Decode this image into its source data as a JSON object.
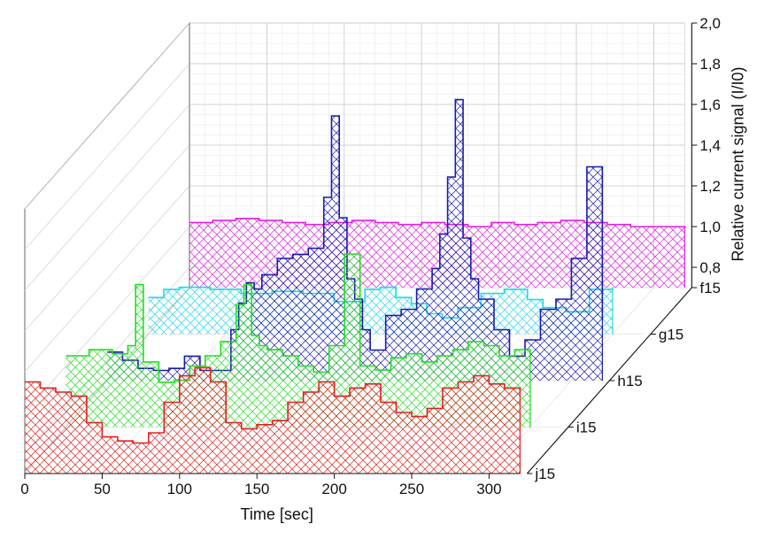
{
  "chart_data": {
    "type": "area",
    "subtype": "3d-waterfall-step",
    "title": "",
    "xlabel": "Time [sec]",
    "ylabel": "Relative current signal (I/I0)",
    "zlabel": "",
    "xlim": [
      0,
      320
    ],
    "ylim": [
      0.7,
      2.0
    ],
    "xticks": [
      "0",
      "50",
      "100",
      "150",
      "200",
      "250",
      "300"
    ],
    "yticks": [
      "0,8",
      "1,0",
      "1,2",
      "1,4",
      "1,6",
      "1,8",
      "2,0"
    ],
    "y_tick_values": [
      0.8,
      1.0,
      1.2,
      1.4,
      1.6,
      1.8,
      2.0
    ],
    "depth_categories": [
      "f15",
      "g15",
      "h15",
      "i15",
      "j15"
    ],
    "grid": true,
    "fill_pattern": "crosshatch",
    "series": [
      {
        "name": "f15",
        "color": "#e020e0",
        "t_start": 0,
        "t_end": 320,
        "x": [
          0,
          15,
          30,
          45,
          60,
          75,
          90,
          105,
          120,
          135,
          150,
          165,
          180,
          195,
          210,
          225,
          240,
          255,
          270,
          285,
          300,
          320
        ],
        "y": [
          1.02,
          1.03,
          1.04,
          1.03,
          1.02,
          1.01,
          1.02,
          1.03,
          1.02,
          1.01,
          1.02,
          1.01,
          1.0,
          1.02,
          1.01,
          1.02,
          1.03,
          1.02,
          1.01,
          1.0,
          1.0,
          0.99
        ]
      },
      {
        "name": "g15",
        "color": "#20d8e8",
        "t_start": 0,
        "t_end": 300,
        "x": [
          0,
          10,
          20,
          40,
          60,
          80,
          100,
          120,
          140,
          150,
          160,
          170,
          180,
          190,
          200,
          215,
          230,
          245,
          255,
          270,
          285,
          300
        ],
        "y": [
          0.88,
          0.92,
          0.93,
          0.92,
          0.9,
          0.91,
          0.9,
          0.86,
          0.92,
          0.93,
          0.88,
          0.85,
          0.8,
          0.78,
          0.83,
          0.9,
          0.92,
          0.87,
          0.83,
          0.81,
          0.92,
          0.93
        ]
      },
      {
        "name": "h15",
        "color": "#1a1ab0",
        "t_start": 0,
        "t_end": 320,
        "x": [
          0,
          10,
          20,
          30,
          40,
          50,
          60,
          70,
          80,
          85,
          90,
          95,
          100,
          110,
          120,
          130,
          140,
          145,
          150,
          155,
          160,
          165,
          170,
          180,
          190,
          200,
          210,
          215,
          220,
          225,
          230,
          235,
          240,
          250,
          260,
          270,
          280,
          290,
          300,
          310,
          320
        ],
        "y": [
          0.84,
          0.8,
          0.76,
          0.75,
          0.76,
          0.82,
          0.75,
          0.75,
          0.95,
          1.08,
          1.18,
          1.15,
          1.22,
          1.3,
          1.32,
          1.35,
          1.6,
          2.0,
          1.5,
          1.2,
          1.1,
          0.95,
          0.85,
          1.02,
          1.05,
          1.15,
          1.25,
          1.42,
          1.7,
          2.08,
          1.4,
          1.2,
          1.1,
          0.95,
          0.82,
          0.9,
          1.05,
          1.1,
          1.3,
          1.75,
          1.0
        ]
      },
      {
        "name": "i15",
        "color": "#22dd22",
        "t_start": 0,
        "t_end": 300,
        "x": [
          0,
          15,
          30,
          40,
          45,
          50,
          60,
          70,
          80,
          90,
          100,
          110,
          115,
          120,
          125,
          130,
          140,
          150,
          160,
          170,
          180,
          190,
          200,
          210,
          220,
          230,
          240,
          250,
          260,
          270,
          280,
          290,
          300
        ],
        "y": [
          1.05,
          1.08,
          1.06,
          1.1,
          1.4,
          1.02,
          0.92,
          0.93,
          1.0,
          1.05,
          1.12,
          1.3,
          1.4,
          1.15,
          1.1,
          1.08,
          1.05,
          1.0,
          0.97,
          1.1,
          1.55,
          1.0,
          0.98,
          1.04,
          1.06,
          1.02,
          1.05,
          1.08,
          1.12,
          1.1,
          1.05,
          1.08,
          1.04
        ]
      },
      {
        "name": "j15",
        "color": "#e02020",
        "t_start": 0,
        "t_end": 320,
        "x": [
          0,
          10,
          20,
          30,
          40,
          50,
          60,
          70,
          80,
          90,
          100,
          110,
          120,
          130,
          140,
          150,
          160,
          170,
          180,
          190,
          200,
          210,
          220,
          230,
          240,
          250,
          260,
          270,
          280,
          290,
          300,
          310,
          320
        ],
        "y": [
          1.15,
          1.12,
          1.1,
          1.08,
          0.95,
          0.88,
          0.86,
          0.85,
          0.9,
          1.05,
          1.18,
          1.22,
          1.15,
          0.95,
          0.92,
          0.94,
          0.96,
          1.05,
          1.1,
          1.15,
          1.08,
          1.12,
          1.14,
          1.05,
          1.0,
          0.98,
          1.02,
          1.12,
          1.15,
          1.18,
          1.14,
          1.12,
          1.1
        ]
      }
    ]
  }
}
